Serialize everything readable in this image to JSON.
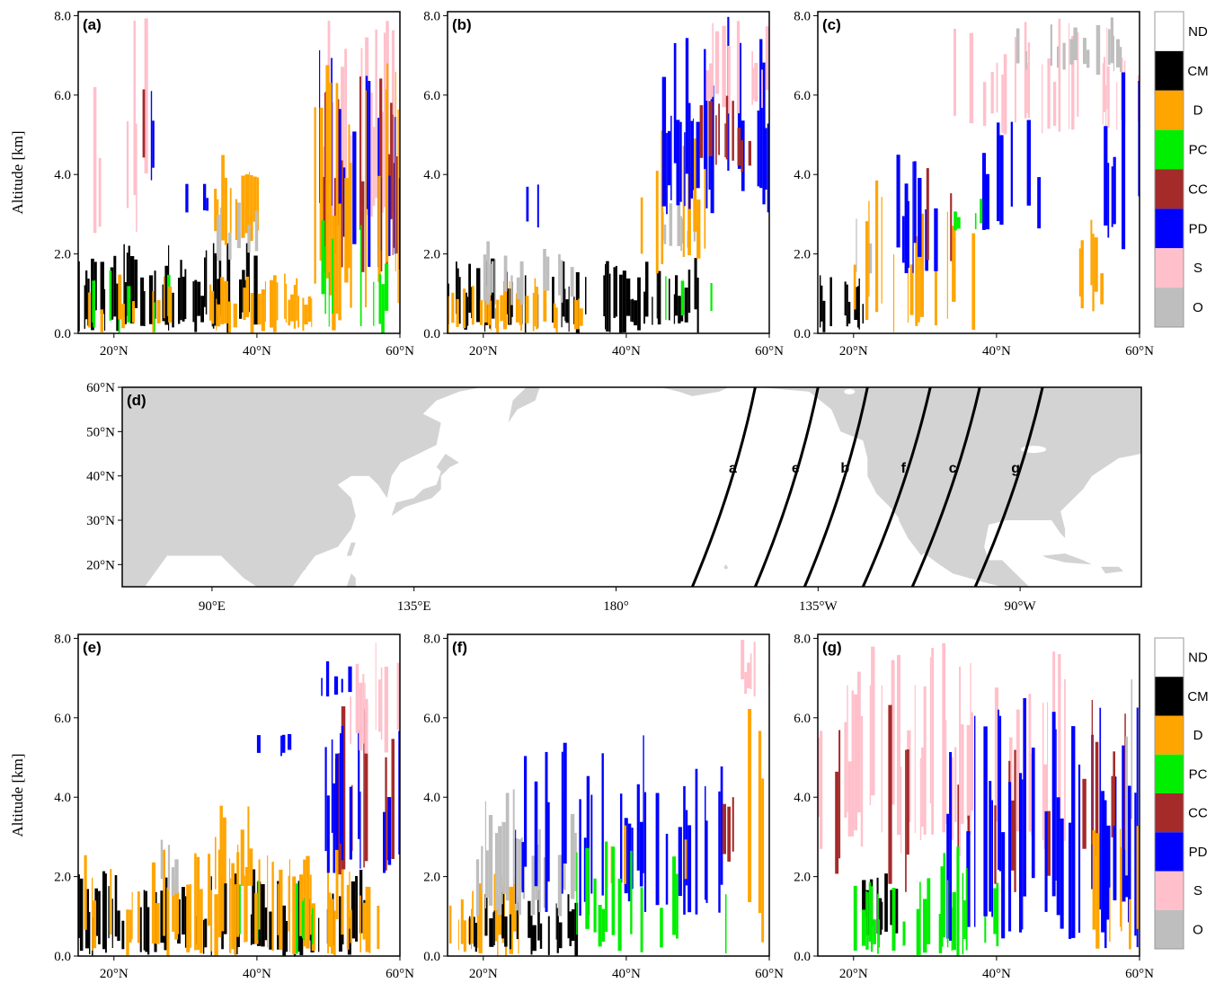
{
  "chart_data": {
    "type": "heatmap",
    "classes": [
      {
        "code": "ND",
        "color": "#ffffff"
      },
      {
        "code": "CM",
        "color": "#000000"
      },
      {
        "code": "D",
        "color": "#ffa500"
      },
      {
        "code": "PC",
        "color": "#00ee00"
      },
      {
        "code": "CC",
        "color": "#a52a2a"
      },
      {
        "code": "PD",
        "color": "#0000ff"
      },
      {
        "code": "S",
        "color": "#ffc0cb"
      },
      {
        "code": "O",
        "color": "#bebebe"
      }
    ],
    "ylabel": "Altitude [km]",
    "yticks": [
      "0.0",
      "2.0",
      "4.0",
      "6.0",
      "8.0"
    ],
    "ylim": [
      0,
      8.1
    ],
    "xticks": [
      "20°N",
      "40°N",
      "60°N"
    ],
    "xlim": [
      15,
      60
    ],
    "profile_panels": [
      {
        "label": "(a)",
        "row": 0,
        "col": 0,
        "seed": 11,
        "blocks": [
          {
            "cls": "CM",
            "lat": [
              15,
              40
            ],
            "alt": [
              0,
              2.3
            ],
            "d": 0.55
          },
          {
            "cls": "D",
            "lat": [
              33,
              48
            ],
            "alt": [
              0,
              1.7
            ],
            "d": 0.6
          },
          {
            "cls": "D",
            "lat": [
              34,
              40
            ],
            "alt": [
              2.2,
              4.5
            ],
            "d": 0.6
          },
          {
            "cls": "O",
            "lat": [
              34,
              40
            ],
            "alt": [
              1.8,
              3.5
            ],
            "d": 0.35
          },
          {
            "cls": "PC",
            "lat": [
              15,
              32
            ],
            "alt": [
              0,
              1.8
            ],
            "d": 0.2
          },
          {
            "cls": "D",
            "lat": [
              15,
              30
            ],
            "alt": [
              0,
              1.5
            ],
            "d": 0.25
          },
          {
            "cls": "S",
            "lat": [
              48,
              60
            ],
            "alt": [
              2.5,
              8.0
            ],
            "d": 0.55
          },
          {
            "cls": "CC",
            "lat": [
              48,
              60
            ],
            "alt": [
              1.5,
              7.0
            ],
            "d": 0.4
          },
          {
            "cls": "PD",
            "lat": [
              48,
              60
            ],
            "alt": [
              1.5,
              7.5
            ],
            "d": 0.3
          },
          {
            "cls": "D",
            "lat": [
              48,
              60
            ],
            "alt": [
              0,
              7.0
            ],
            "d": 0.4
          },
          {
            "cls": "PC",
            "lat": [
              49,
              58
            ],
            "alt": [
              0,
              3.0
            ],
            "d": 0.3
          },
          {
            "cls": "S",
            "lat": [
              15,
              27
            ],
            "alt": [
              2.0,
              8.0
            ],
            "d": 0.12
          },
          {
            "cls": "PD",
            "lat": [
              24,
              26
            ],
            "alt": [
              3.8,
              6.5
            ],
            "d": 0.45
          },
          {
            "cls": "CC",
            "lat": [
              24,
              27
            ],
            "alt": [
              4.0,
              6.5
            ],
            "d": 0.3
          },
          {
            "cls": "PD",
            "lat": [
              29,
              33
            ],
            "alt": [
              3.0,
              4.0
            ],
            "d": 0.35
          }
        ]
      },
      {
        "label": "(b)",
        "row": 0,
        "col": 1,
        "seed": 23,
        "blocks": [
          {
            "cls": "CM",
            "lat": [
              15,
              50
            ],
            "alt": [
              0,
              1.9
            ],
            "d": 0.5
          },
          {
            "cls": "D",
            "lat": [
              15,
              34
            ],
            "alt": [
              0,
              1.4
            ],
            "d": 0.5
          },
          {
            "cls": "O",
            "lat": [
              20,
              33
            ],
            "alt": [
              0.7,
              2.4
            ],
            "d": 0.35
          },
          {
            "cls": "O",
            "lat": [
              45,
              50
            ],
            "alt": [
              2.0,
              3.3
            ],
            "d": 0.4
          },
          {
            "cls": "D",
            "lat": [
              42,
              52
            ],
            "alt": [
              1.5,
              5.5
            ],
            "d": 0.35
          },
          {
            "cls": "PD",
            "lat": [
              45,
              60
            ],
            "alt": [
              3.0,
              8.0
            ],
            "d": 0.45
          },
          {
            "cls": "S",
            "lat": [
              50,
              60
            ],
            "alt": [
              5.5,
              8.0
            ],
            "d": 0.6
          },
          {
            "cls": "CC",
            "lat": [
              50,
              58
            ],
            "alt": [
              4.0,
              6.0
            ],
            "d": 0.25
          },
          {
            "cls": "PC",
            "lat": [
              45,
              52
            ],
            "alt": [
              0.3,
              1.8
            ],
            "d": 0.2
          },
          {
            "cls": "PD",
            "lat": [
              26,
              28
            ],
            "alt": [
              2.6,
              3.8
            ],
            "d": 0.6
          }
        ]
      },
      {
        "label": "(c)",
        "row": 0,
        "col": 2,
        "seed": 37,
        "blocks": [
          {
            "cls": "CM",
            "lat": [
              15,
              22
            ],
            "alt": [
              0,
              1.5
            ],
            "d": 0.6
          },
          {
            "cls": "O",
            "lat": [
              18,
              23
            ],
            "alt": [
              1.5,
              3.2
            ],
            "d": 0.4
          },
          {
            "cls": "D",
            "lat": [
              20,
              37
            ],
            "alt": [
              0,
              4.0
            ],
            "d": 0.35
          },
          {
            "cls": "PD",
            "lat": [
              26,
              32
            ],
            "alt": [
              1.5,
              5.0
            ],
            "d": 0.6
          },
          {
            "cls": "PD",
            "lat": [
              38,
              46
            ],
            "alt": [
              2.5,
              5.5
            ],
            "d": 0.35
          },
          {
            "cls": "CC",
            "lat": [
              28,
              34
            ],
            "alt": [
              1.0,
              4.5
            ],
            "d": 0.3
          },
          {
            "cls": "S",
            "lat": [
              33,
              60
            ],
            "alt": [
              5.0,
              8.0
            ],
            "d": 0.35
          },
          {
            "cls": "O",
            "lat": [
              40,
              58
            ],
            "alt": [
              6.5,
              8.0
            ],
            "d": 0.3
          },
          {
            "cls": "D",
            "lat": [
              51,
              55
            ],
            "alt": [
              0.5,
              3.0
            ],
            "d": 0.4
          },
          {
            "cls": "PD",
            "lat": [
              55,
              60
            ],
            "alt": [
              2.0,
              7.0
            ],
            "d": 0.4
          },
          {
            "cls": "PC",
            "lat": [
              34,
              40
            ],
            "alt": [
              2.5,
              3.5
            ],
            "d": 0.2
          }
        ]
      },
      {
        "label": "(e)",
        "row": 1,
        "col": 0,
        "seed": 53,
        "blocks": [
          {
            "cls": "CM",
            "lat": [
              15,
              57
            ],
            "alt": [
              0,
              2.2
            ],
            "d": 0.5
          },
          {
            "cls": "D",
            "lat": [
              15,
              57
            ],
            "alt": [
              0,
              2.8
            ],
            "d": 0.45
          },
          {
            "cls": "O",
            "lat": [
              26,
              29
            ],
            "alt": [
              1.5,
              3.3
            ],
            "d": 0.5
          },
          {
            "cls": "D",
            "lat": [
              33,
              40
            ],
            "alt": [
              1.5,
              4.0
            ],
            "d": 0.45
          },
          {
            "cls": "PD",
            "lat": [
              40,
              45
            ],
            "alt": [
              5.0,
              5.6
            ],
            "d": 0.4
          },
          {
            "cls": "PD",
            "lat": [
              48,
              54
            ],
            "alt": [
              6.5,
              7.6
            ],
            "d": 0.3
          },
          {
            "cls": "CC",
            "lat": [
              48,
              60
            ],
            "alt": [
              2.0,
              6.5
            ],
            "d": 0.4
          },
          {
            "cls": "PD",
            "lat": [
              48,
              60
            ],
            "alt": [
              2.0,
              6.0
            ],
            "d": 0.3
          },
          {
            "cls": "S",
            "lat": [
              53,
              60
            ],
            "alt": [
              5.0,
              8.0
            ],
            "d": 0.6
          },
          {
            "cls": "PC",
            "lat": [
              37,
              48
            ],
            "alt": [
              0,
              2.0
            ],
            "d": 0.2
          },
          {
            "cls": "PD",
            "lat": [
              30,
              31.5
            ],
            "alt": [
              3.5,
              4.6
            ],
            "d": 0.6
          }
        ]
      },
      {
        "label": "(f)",
        "row": 1,
        "col": 1,
        "seed": 71,
        "blocks": [
          {
            "cls": "D",
            "lat": [
              15,
              25
            ],
            "alt": [
              0,
              2.2
            ],
            "d": 0.55
          },
          {
            "cls": "CM",
            "lat": [
              18,
              33
            ],
            "alt": [
              0,
              1.8
            ],
            "d": 0.5
          },
          {
            "cls": "O",
            "lat": [
              19,
              33
            ],
            "alt": [
              1.0,
              4.2
            ],
            "d": 0.55
          },
          {
            "cls": "PD",
            "lat": [
              23,
              55
            ],
            "alt": [
              1.0,
              5.6
            ],
            "d": 0.4
          },
          {
            "cls": "D",
            "lat": [
              36,
              50
            ],
            "alt": [
              1.5,
              4.2
            ],
            "d": 0.15
          },
          {
            "cls": "PC",
            "lat": [
              33,
              54
            ],
            "alt": [
              0,
              2.9
            ],
            "d": 0.2
          },
          {
            "cls": "CC",
            "lat": [
              52,
              55
            ],
            "alt": [
              2.0,
              4.5
            ],
            "d": 0.4
          },
          {
            "cls": "D",
            "lat": [
              57,
              60
            ],
            "alt": [
              0,
              8.0
            ],
            "d": 0.4
          },
          {
            "cls": "S",
            "lat": [
              56,
              60
            ],
            "alt": [
              6.5,
              8.0
            ],
            "d": 0.5
          }
        ]
      },
      {
        "label": "(g)",
        "row": 1,
        "col": 2,
        "seed": 89,
        "blocks": [
          {
            "cls": "S",
            "lat": [
              15,
              50
            ],
            "alt": [
              2.5,
              8.0
            ],
            "d": 0.45
          },
          {
            "cls": "CC",
            "lat": [
              16,
              48
            ],
            "alt": [
              1.5,
              6.5
            ],
            "d": 0.15
          },
          {
            "cls": "CM",
            "lat": [
              21,
              26
            ],
            "alt": [
              0.5,
              2.3
            ],
            "d": 0.7
          },
          {
            "cls": "PC",
            "lat": [
              20,
              40
            ],
            "alt": [
              0,
              2.0
            ],
            "d": 0.45
          },
          {
            "cls": "PD",
            "lat": [
              33,
              60
            ],
            "alt": [
              0.2,
              6.5
            ],
            "d": 0.5
          },
          {
            "cls": "PC",
            "lat": [
              32,
              36
            ],
            "alt": [
              0,
              3.0
            ],
            "d": 0.45
          },
          {
            "cls": "CC",
            "lat": [
              52,
              60
            ],
            "alt": [
              2.5,
              6.5
            ],
            "d": 0.35
          },
          {
            "cls": "D",
            "lat": [
              53,
              60
            ],
            "alt": [
              0,
              3.5
            ],
            "d": 0.25
          },
          {
            "cls": "O",
            "lat": [
              58,
              60
            ],
            "alt": [
              2.0,
              8.0
            ],
            "d": 0.3
          }
        ]
      }
    ],
    "map_panel": {
      "label": "(d)",
      "xticks": [
        "90°E",
        "135°E",
        "180°",
        "135°W",
        "90°W"
      ],
      "yticks": [
        "20°N",
        "30°N",
        "40°N",
        "50°N",
        "60°N"
      ],
      "xlim_deg_east": [
        70,
        297
      ],
      "ylim": [
        15,
        60
      ],
      "land_color": "#d3d3d3",
      "tracks": [
        {
          "name": "a",
          "lat_lon": [
            [
              15,
              197
            ],
            [
              60,
              211
            ]
          ],
          "label_at": [
            42,
            206
          ]
        },
        {
          "name": "e",
          "lat_lon": [
            [
              15,
              211
            ],
            [
              60,
              225
            ]
          ],
          "label_at": [
            42,
            220
          ]
        },
        {
          "name": "b",
          "lat_lon": [
            [
              15,
              222
            ],
            [
              60,
              236
            ]
          ],
          "label_at": [
            42,
            231
          ]
        },
        {
          "name": "f",
          "lat_lon": [
            [
              15,
              235
            ],
            [
              60,
              250
            ]
          ],
          "label_at": [
            42,
            244
          ]
        },
        {
          "name": "c",
          "lat_lon": [
            [
              15,
              246
            ],
            [
              60,
              261
            ]
          ],
          "label_at": [
            42,
            255
          ]
        },
        {
          "name": "g",
          "lat_lon": [
            [
              15,
              260
            ],
            [
              60,
              275
            ]
          ],
          "label_at": [
            42,
            269
          ]
        }
      ]
    }
  }
}
